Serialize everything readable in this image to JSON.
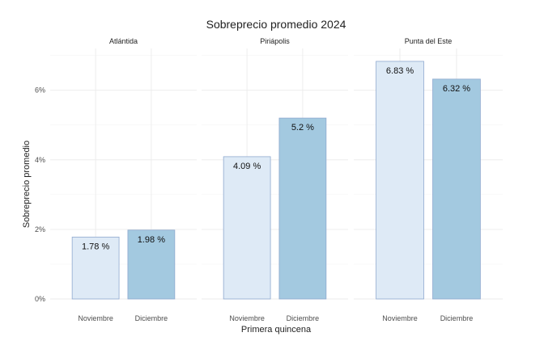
{
  "chart_data": {
    "type": "bar",
    "title": "Sobreprecio promedio 2024",
    "xlabel": "Primera quincena",
    "ylabel": "Sobreprecio promedio",
    "ylim": [
      0,
      7.2
    ],
    "yticks": [
      0,
      2,
      4,
      6
    ],
    "ytick_labels": [
      "0%",
      "2%",
      "4%",
      "6%"
    ],
    "categories": [
      "Noviembre",
      "Diciembre"
    ],
    "colors": {
      "Noviembre": "#deeaf6",
      "Diciembre": "#a3c9e0",
      "bar_outline": "#8fa9cf"
    },
    "facets": [
      {
        "name": "Atlántida",
        "values": [
          1.78,
          1.98
        ],
        "labels": [
          "1.78 %",
          "1.98 %"
        ]
      },
      {
        "name": "Piriápolis",
        "values": [
          4.09,
          5.2
        ],
        "labels": [
          "4.09 %",
          "5.2 %"
        ]
      },
      {
        "name": "Punta del Este",
        "values": [
          6.83,
          6.32
        ],
        "labels": [
          "6.83 %",
          "6.32 %"
        ]
      }
    ]
  }
}
